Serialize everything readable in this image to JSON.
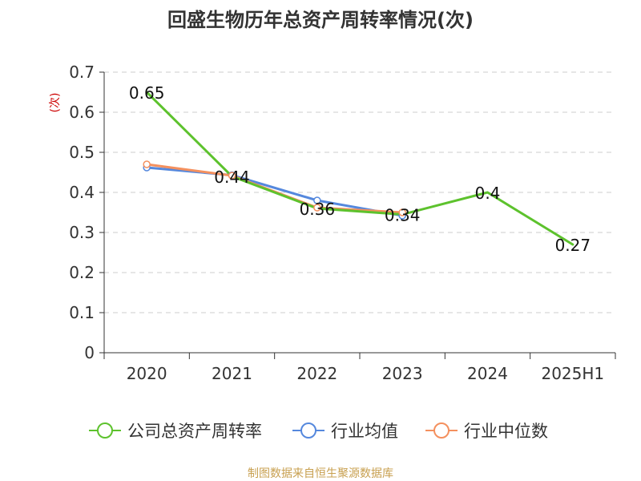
{
  "chart_data": {
    "type": "line",
    "title": "回盛生物历年总资产周转率情况(次)",
    "ylabel": "(次)",
    "xlabel": "",
    "categories": [
      "2020",
      "2021",
      "2022",
      "2023",
      "2024",
      "2025H1"
    ],
    "ylim": [
      0,
      0.7
    ],
    "yticks": [
      "0",
      "0.1",
      "0.2",
      "0.3",
      "0.4",
      "0.5",
      "0.6",
      "0.7"
    ],
    "grid": true,
    "legend_position": "bottom",
    "series": [
      {
        "name": "公司总资产周转率",
        "color": "#5dc22d",
        "values": [
          0.65,
          0.44,
          0.36,
          0.345,
          0.4,
          0.27
        ],
        "labels": [
          "0.65",
          "0.44",
          "0.36",
          "0.34",
          "0.4",
          "0.27"
        ],
        "markers": false
      },
      {
        "name": "行业均值",
        "color": "#5588dd",
        "values": [
          0.462,
          0.443,
          0.38,
          0.342,
          null,
          null
        ],
        "markers": true
      },
      {
        "name": "行业中位数",
        "color": "#f4905e",
        "values": [
          0.47,
          0.442,
          0.362,
          0.35,
          null,
          null
        ],
        "markers": true
      }
    ]
  },
  "source": "制图数据来自恒生聚源数据库",
  "colors": {
    "title": "#333333",
    "axis": "#333333",
    "grid": "#cccccc",
    "ylabel": "#cc0000",
    "source": "#c8a050"
  }
}
